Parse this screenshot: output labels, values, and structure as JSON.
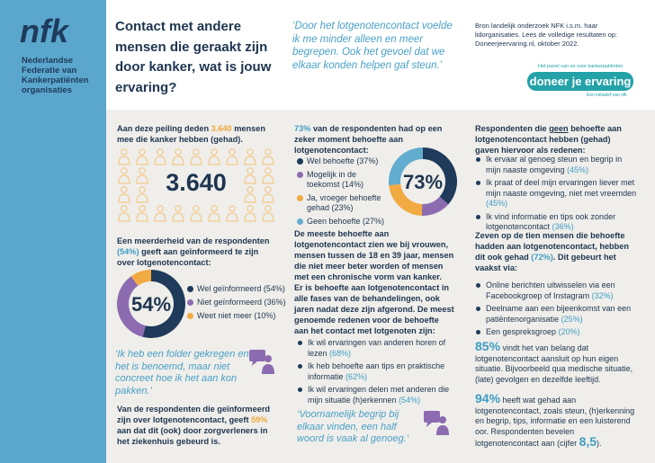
{
  "sidebar": {
    "logo": "nfk",
    "organisation": "Nederlandse Federatie van Kankerpatiënten organisaties"
  },
  "header": {
    "title": "Contact met andere mensen die geraakt zijn door kanker, wat is jouw ervaring?",
    "quote": "‘Door het lotgenotencontact voelde ik me minder alleen en meer begrepen. Ook het gevoel dat we elkaar konden helpen gaf steun.’",
    "source": "Bron landelijk onderzoek NFK i.s.m. haar lidorganisaties. Lees de volledige resultaten op: Doneerjeervaring.nl, oktober 2022.",
    "brand": {
      "tagline": "Het panel van en voor kankerpatiënten",
      "name": "doneer je ervaring",
      "initiative": "Een initiatief van nfk"
    }
  },
  "column_1": {
    "intro": [
      "Aan deze peiling deden ",
      "3.640",
      " mensen mee die kanker hebben (gehad)."
    ],
    "big_number": "3.640",
    "informed_intro": [
      "Een meerderheid van de respondenten ",
      "(54%)",
      " geeft aan geïnformeerd te zijn over lotgenotencontact:"
    ],
    "quote": "‘Ik heb een folder gekregen en het is benoemd, maar niet concreet hoe ik het aan kon pakken.’",
    "care_providers": [
      "Van de respondenten die geïnformeerd zijn over lotgenotencontact, geeft ",
      "59%",
      " aan dat dit (ook) door zorgverleners in het ziekenhuis gebeurd is."
    ]
  },
  "column_2": {
    "intro": [
      "73%",
      " van de respondenten had op een zeker moment behoefte aan lotgenotencontact:"
    ],
    "most_need": "De meeste behoefte aan lotgenotencontact zien we bij vrouwen, mensen tussen de 18 en 39 jaar, mensen die niet meer beter worden of mensen met een chronische vorm van kanker.",
    "phases": "Er is behoefte aan lotgenotencontact in alle fases van de behandelingen, ook jaren nadat deze zijn afgerond. De meest genoemde redenen voor de behoefte aan het contact met lotgenoten zijn:",
    "reasons": [
      {
        "text": "Ik wil ervaringen van anderen horen of lezen",
        "pct": "(68%)"
      },
      {
        "text": "Ik heb behoefte aan tips en praktische informatie",
        "pct": "(62%)"
      },
      {
        "text": "Ik wil ervaringen delen met anderen die mijn situatie (h)erkennen",
        "pct": "(54%)"
      }
    ],
    "quote": "‘Voornamelijk begrip bij elkaar vinden, een half woord is vaak al genoeg.’"
  },
  "column_3": {
    "intro": [
      "Respondenten die ",
      "geen",
      " behoefte aan lotgenotencontact hebben (gehad) gaven hiervoor als redenen:"
    ],
    "reasons": [
      {
        "text": "Ik ervaar al genoeg steun en begrip in mijn naaste omgeving",
        "pct": "(45%)"
      },
      {
        "text": "Ik praat of deel mijn ervaringen liever met mijn naaste omgeving, niet met vreemden",
        "pct": "(45%)"
      },
      {
        "text": "Ik vind informatie en tips ook zonder lotgenotencontact",
        "pct": "(36%)"
      }
    ],
    "seven_of_ten": [
      "Zeven op de tien mensen die behoefte hadden aan lotgenotencontact, hebben dit ook gehad ",
      "(72%)",
      ". Dit gebeurt het vaakst via:"
    ],
    "channels": [
      {
        "text": "Online berichten uitwisselen via een Facebookgroep of Instagram",
        "pct": "(32%)"
      },
      {
        "text": "Deelname aan een bijeenkomst van een patiëntenorganisatie",
        "pct": "(25%)"
      },
      {
        "text": "Een gespreksgroep",
        "pct": "(20%)"
      }
    ],
    "own_situation": [
      "85%",
      " vindt het van belang dat lotgenotencontact aansluit op hun eigen situatie. Bijvoorbeeld qua medische situatie, (late) gevolgen en dezelfde leeftijd."
    ],
    "benefit": [
      "94%",
      " heeft wat gehad aan lotgenotencontact, zoals steun, (h)erkenning en begrip, tips, informatie en een luisterend oor. Respondenten bevelen lotgenotencontact aan (cijfer ",
      "8,5",
      ")."
    ]
  },
  "chart_data": [
    {
      "type": "pie",
      "center_label": "54%",
      "categories": [
        "Wel geïnformeerd (54%)",
        "Niet geïnformeerd (36%)",
        "Weet niet meer (10%)"
      ],
      "values": [
        54,
        36,
        10
      ],
      "colors": [
        "#1f3a5a",
        "#8c6bb1",
        "#f2aa42"
      ]
    },
    {
      "type": "pie",
      "center_label": "73%",
      "categories": [
        "Wel behoefte (37%)",
        "Mogelijk in de toekomst (14%)",
        "Ja, vroeger behoefte gehad (23%)",
        "Geen behoefte (27%)"
      ],
      "values": [
        37,
        14,
        23,
        27
      ],
      "colors": [
        "#1f3a5a",
        "#8c6bb1",
        "#f2aa42",
        "#62acd0"
      ]
    }
  ]
}
